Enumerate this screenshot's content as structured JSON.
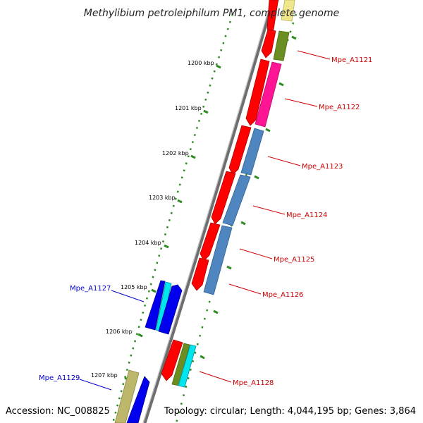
{
  "title": "Methylibium petroleiphilum PM1, complete genome",
  "footer": {
    "accession": "Accession: NC_008825",
    "summary": "Topology: circular; Length: 4,044,195 bp; Genes: 3,864"
  },
  "tick_labels": [
    "1200 kbp",
    "1201 kbp",
    "1202 kbp",
    "1203 kbp",
    "1204 kbp",
    "1205 kbp",
    "1206 kbp",
    "1207 kbp"
  ],
  "gene_labels": [
    {
      "text": "Mpe_A1121",
      "color": "#cc0000"
    },
    {
      "text": "Mpe_A1122",
      "color": "#cc0000"
    },
    {
      "text": "Mpe_A1123",
      "color": "#cc0000"
    },
    {
      "text": "Mpe_A1124",
      "color": "#cc0000"
    },
    {
      "text": "Mpe_A1125",
      "color": "#cc0000"
    },
    {
      "text": "Mpe_A1126",
      "color": "#cc0000"
    },
    {
      "text": "Mpe_A1127",
      "color": "#0000cc"
    },
    {
      "text": "Mpe_A1128",
      "color": "#cc0000"
    },
    {
      "text": "Mpe_A1129",
      "color": "#0000cc"
    }
  ],
  "colors": {
    "backbone": "#8a8a8a",
    "tick": "#2e8b22",
    "cds_red": "#ff0000",
    "cog_blue": "#4f86c0",
    "cog_pink": "#ff1493",
    "cog_olive": "#6b8e23",
    "cog_yellow": "#f0e68c",
    "cog_cyan": "#00e5ee",
    "cds_blue": "#0000ee",
    "cog_khaki": "#bdb76b"
  }
}
